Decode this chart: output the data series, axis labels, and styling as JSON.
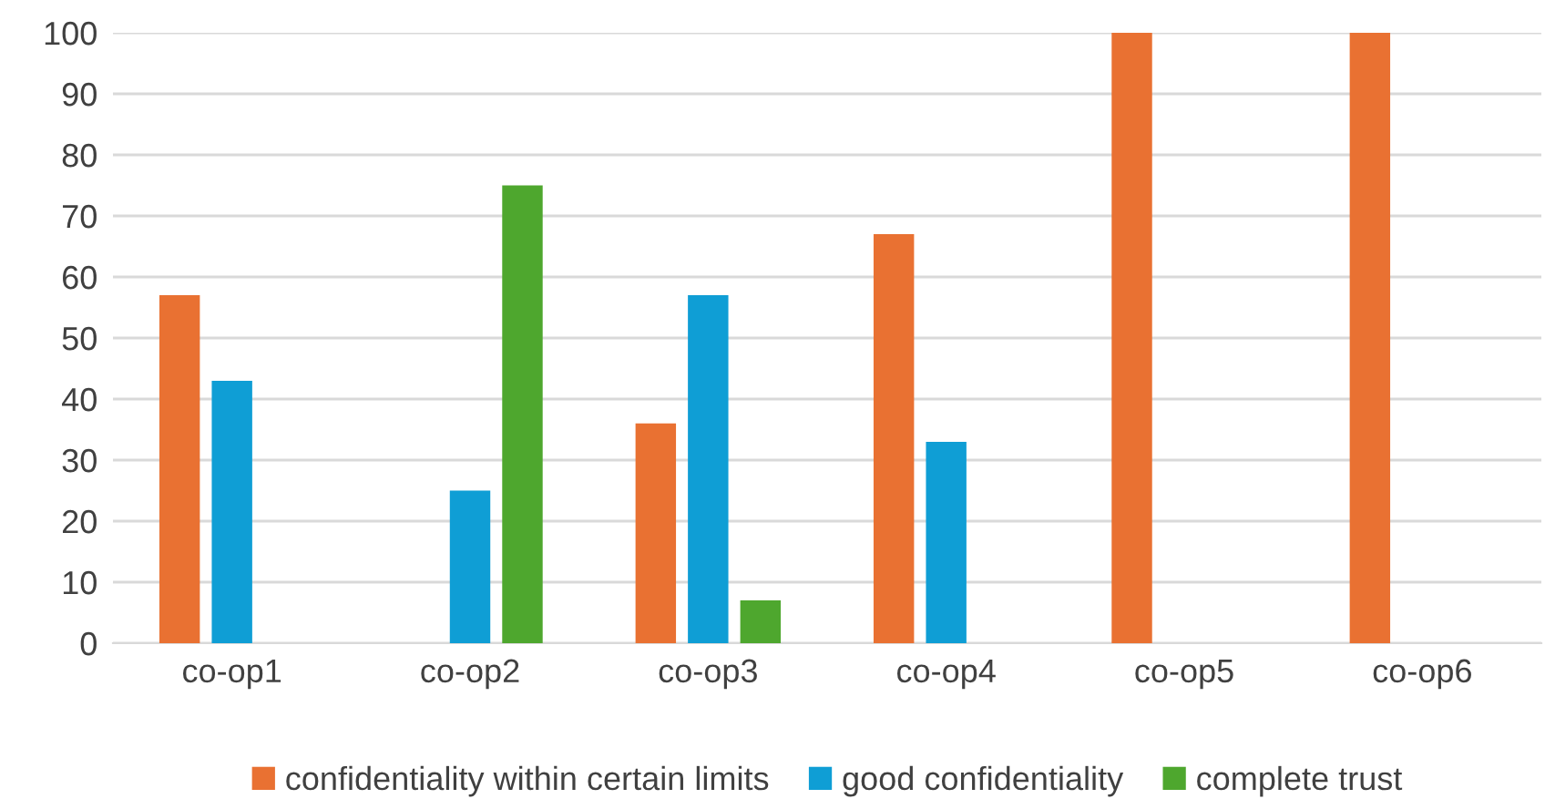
{
  "chart_data": {
    "type": "bar",
    "categories": [
      "co-op1",
      "co-op2",
      "co-op3",
      "co-op4",
      "co-op5",
      "co-op6"
    ],
    "series": [
      {
        "name": "confidentiality within certain limits",
        "color": "#e97132",
        "values": [
          57,
          0,
          36,
          67,
          100,
          100
        ]
      },
      {
        "name": "good confidentiality",
        "color": "#0f9ed5",
        "values": [
          43,
          25,
          57,
          33,
          0,
          0
        ]
      },
      {
        "name": "complete trust",
        "color": "#4ea72e",
        "values": [
          0,
          75,
          7,
          0,
          0,
          0
        ]
      }
    ],
    "ylim": [
      0,
      100
    ],
    "yticks": [
      0,
      10,
      20,
      30,
      40,
      50,
      60,
      70,
      80,
      90,
      100
    ],
    "grid": "y",
    "legend": "bottom"
  }
}
